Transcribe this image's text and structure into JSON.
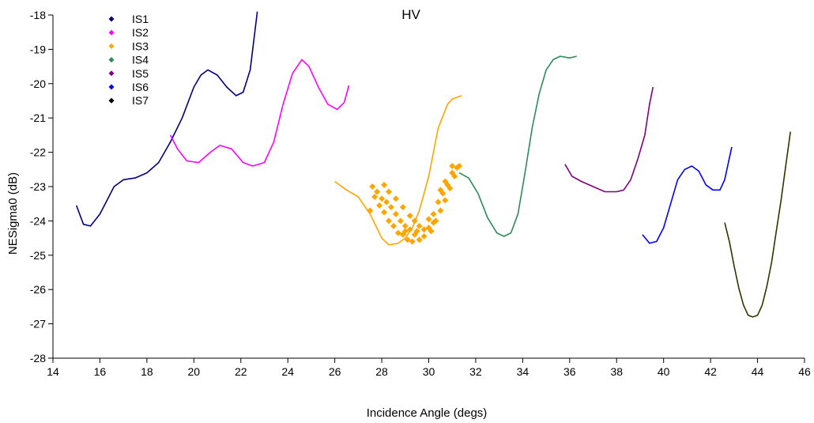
{
  "chart_data": {
    "type": "line",
    "title": "HV",
    "xlabel": "Incidence Angle (degs)",
    "ylabel": "NESigma0 (dB)",
    "xlim": [
      14,
      46
    ],
    "ylim": [
      -28,
      -18
    ],
    "xticks": [
      "14",
      "16",
      "18",
      "20",
      "22",
      "24",
      "26",
      "28",
      "30",
      "32",
      "34",
      "36",
      "38",
      "40",
      "42",
      "44",
      "46"
    ],
    "yticks": [
      "-28",
      "-27",
      "-26",
      "-25",
      "-24",
      "-23",
      "-22",
      "-21",
      "-20",
      "-19",
      "-18"
    ],
    "grid": false,
    "legend_position": "top-left",
    "series": [
      {
        "name": "IS1",
        "color": "#000080",
        "style": "line",
        "points": [
          [
            15.0,
            -23.55
          ],
          [
            15.3,
            -24.1
          ],
          [
            15.6,
            -24.15
          ],
          [
            16.0,
            -23.8
          ],
          [
            16.3,
            -23.4
          ],
          [
            16.6,
            -23.0
          ],
          [
            17.0,
            -22.8
          ],
          [
            17.5,
            -22.75
          ],
          [
            18.0,
            -22.6
          ],
          [
            18.5,
            -22.3
          ],
          [
            19.0,
            -21.7
          ],
          [
            19.5,
            -21.0
          ],
          [
            20.0,
            -20.1
          ],
          [
            20.3,
            -19.75
          ],
          [
            20.6,
            -19.6
          ],
          [
            21.0,
            -19.75
          ],
          [
            21.4,
            -20.1
          ],
          [
            21.8,
            -20.35
          ],
          [
            22.1,
            -20.25
          ],
          [
            22.4,
            -19.6
          ],
          [
            22.7,
            -17.9
          ]
        ]
      },
      {
        "name": "IS2",
        "color": "#FF00FF",
        "style": "line",
        "points": [
          [
            19.0,
            -21.5
          ],
          [
            19.3,
            -21.9
          ],
          [
            19.7,
            -22.25
          ],
          [
            20.2,
            -22.3
          ],
          [
            20.7,
            -22.0
          ],
          [
            21.1,
            -21.8
          ],
          [
            21.6,
            -21.9
          ],
          [
            22.1,
            -22.3
          ],
          [
            22.5,
            -22.4
          ],
          [
            23.0,
            -22.3
          ],
          [
            23.4,
            -21.7
          ],
          [
            23.8,
            -20.6
          ],
          [
            24.2,
            -19.7
          ],
          [
            24.6,
            -19.3
          ],
          [
            24.9,
            -19.5
          ],
          [
            25.3,
            -20.1
          ],
          [
            25.7,
            -20.6
          ],
          [
            26.1,
            -20.75
          ],
          [
            26.4,
            -20.55
          ],
          [
            26.6,
            -20.05
          ]
        ]
      },
      {
        "name": "IS3",
        "color": "#FFA500",
        "style": "line",
        "points": [
          [
            26.0,
            -22.85
          ],
          [
            26.5,
            -23.1
          ],
          [
            27.0,
            -23.3
          ],
          [
            27.5,
            -23.8
          ],
          [
            28.0,
            -24.5
          ],
          [
            28.3,
            -24.7
          ],
          [
            28.7,
            -24.65
          ],
          [
            29.0,
            -24.5
          ],
          [
            29.3,
            -24.2
          ],
          [
            29.6,
            -23.7
          ],
          [
            30.0,
            -22.7
          ],
          [
            30.4,
            -21.3
          ],
          [
            30.8,
            -20.6
          ],
          [
            31.0,
            -20.45
          ],
          [
            31.4,
            -20.35
          ]
        ]
      },
      {
        "name": "IS3",
        "color": "#FFA500",
        "style": "markers",
        "points": [
          [
            27.5,
            -23.7
          ],
          [
            27.7,
            -23.3
          ],
          [
            27.9,
            -23.55
          ],
          [
            28.1,
            -23.75
          ],
          [
            28.3,
            -24.0
          ],
          [
            28.5,
            -24.15
          ],
          [
            28.7,
            -24.35
          ],
          [
            28.9,
            -24.4
          ],
          [
            29.1,
            -24.55
          ],
          [
            29.3,
            -24.6
          ],
          [
            27.6,
            -23.0
          ],
          [
            27.8,
            -23.15
          ],
          [
            28.0,
            -23.35
          ],
          [
            28.2,
            -23.45
          ],
          [
            28.4,
            -23.6
          ],
          [
            28.6,
            -23.8
          ],
          [
            28.8,
            -24.0
          ],
          [
            29.0,
            -24.15
          ],
          [
            29.2,
            -24.25
          ],
          [
            29.4,
            -24.4
          ],
          [
            29.6,
            -24.55
          ],
          [
            28.1,
            -22.95
          ],
          [
            28.3,
            -23.15
          ],
          [
            28.6,
            -23.35
          ],
          [
            28.9,
            -23.6
          ],
          [
            29.2,
            -23.85
          ],
          [
            29.4,
            -24.0
          ],
          [
            29.6,
            -24.15
          ],
          [
            29.8,
            -24.25
          ],
          [
            30.0,
            -24.2
          ],
          [
            30.2,
            -24.05
          ],
          [
            29.0,
            -24.3
          ],
          [
            29.5,
            -24.3
          ],
          [
            29.8,
            -24.45
          ],
          [
            30.1,
            -24.3
          ],
          [
            30.3,
            -24.0
          ],
          [
            30.5,
            -23.7
          ],
          [
            30.7,
            -23.4
          ],
          [
            30.9,
            -23.05
          ],
          [
            31.1,
            -22.7
          ],
          [
            30.0,
            -23.95
          ],
          [
            30.2,
            -23.8
          ],
          [
            30.4,
            -23.45
          ],
          [
            30.6,
            -23.2
          ],
          [
            30.8,
            -22.95
          ],
          [
            31.0,
            -22.6
          ],
          [
            31.2,
            -22.45
          ],
          [
            30.5,
            -23.1
          ],
          [
            30.7,
            -22.85
          ],
          [
            31.0,
            -22.4
          ],
          [
            31.3,
            -22.4
          ]
        ]
      },
      {
        "name": "IS4",
        "color": "#2E8B57",
        "style": "line",
        "points": [
          [
            31.3,
            -22.6
          ],
          [
            31.7,
            -22.75
          ],
          [
            32.1,
            -23.2
          ],
          [
            32.5,
            -23.9
          ],
          [
            32.9,
            -24.35
          ],
          [
            33.2,
            -24.45
          ],
          [
            33.5,
            -24.35
          ],
          [
            33.8,
            -23.8
          ],
          [
            34.1,
            -22.6
          ],
          [
            34.4,
            -21.3
          ],
          [
            34.7,
            -20.3
          ],
          [
            35.0,
            -19.6
          ],
          [
            35.3,
            -19.3
          ],
          [
            35.6,
            -19.2
          ],
          [
            36.0,
            -19.25
          ],
          [
            36.3,
            -19.2
          ]
        ]
      },
      {
        "name": "IS5",
        "color": "#800080",
        "style": "line",
        "points": [
          [
            35.8,
            -22.35
          ],
          [
            36.1,
            -22.7
          ],
          [
            36.5,
            -22.85
          ],
          [
            37.0,
            -23.0
          ],
          [
            37.5,
            -23.15
          ],
          [
            38.0,
            -23.15
          ],
          [
            38.3,
            -23.1
          ],
          [
            38.6,
            -22.8
          ],
          [
            38.9,
            -22.2
          ],
          [
            39.2,
            -21.5
          ],
          [
            39.4,
            -20.6
          ],
          [
            39.55,
            -20.1
          ]
        ]
      },
      {
        "name": "IS6",
        "color": "#0000FF",
        "style": "line",
        "points": [
          [
            39.1,
            -24.4
          ],
          [
            39.4,
            -24.65
          ],
          [
            39.7,
            -24.6
          ],
          [
            40.0,
            -24.2
          ],
          [
            40.3,
            -23.5
          ],
          [
            40.6,
            -22.8
          ],
          [
            40.9,
            -22.5
          ],
          [
            41.2,
            -22.4
          ],
          [
            41.5,
            -22.55
          ],
          [
            41.8,
            -22.95
          ],
          [
            42.1,
            -23.1
          ],
          [
            42.4,
            -23.1
          ],
          [
            42.6,
            -22.8
          ],
          [
            42.9,
            -21.85
          ]
        ]
      },
      {
        "name": "IS7",
        "color": "#333300",
        "style": "line",
        "points": [
          [
            42.6,
            -24.05
          ],
          [
            42.8,
            -24.6
          ],
          [
            43.0,
            -25.3
          ],
          [
            43.2,
            -25.95
          ],
          [
            43.4,
            -26.45
          ],
          [
            43.6,
            -26.75
          ],
          [
            43.8,
            -26.8
          ],
          [
            44.0,
            -26.75
          ],
          [
            44.2,
            -26.45
          ],
          [
            44.4,
            -25.9
          ],
          [
            44.6,
            -25.2
          ],
          [
            44.8,
            -24.3
          ],
          [
            45.0,
            -23.4
          ],
          [
            45.2,
            -22.4
          ],
          [
            45.4,
            -21.4
          ]
        ]
      }
    ],
    "legend": [
      {
        "label": "IS1",
        "color": "#000080"
      },
      {
        "label": "IS2",
        "color": "#FF00FF"
      },
      {
        "label": "IS3",
        "color": "#FFA500"
      },
      {
        "label": "IS4",
        "color": "#2E8B57"
      },
      {
        "label": "IS5",
        "color": "#800080"
      },
      {
        "label": "IS6",
        "color": "#0000FF"
      },
      {
        "label": "IS7",
        "color": "#000000"
      }
    ]
  }
}
